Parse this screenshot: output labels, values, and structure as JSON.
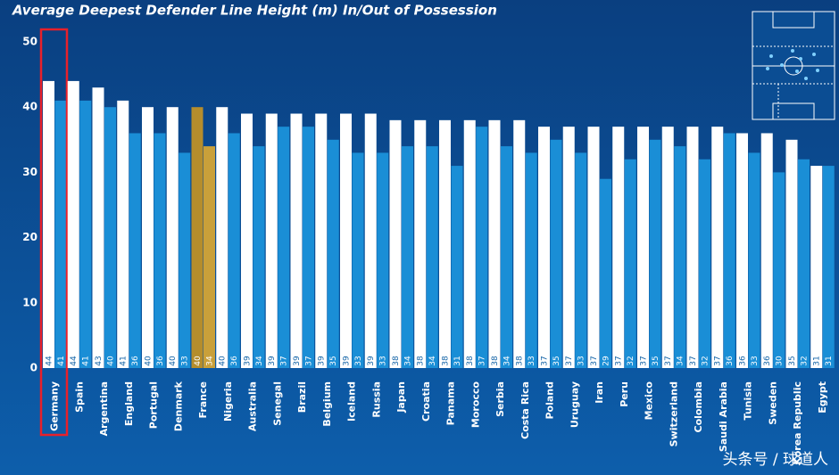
{
  "chart_data": {
    "type": "bar",
    "title": "Average Deepest Defender Line Height (m) In/Out of Possession",
    "categories": [
      "Germany",
      "Spain",
      "Argentina",
      "England",
      "Portugal",
      "Denmark",
      "France",
      "Nigeria",
      "Australia",
      "Senegal",
      "Brazil",
      "Belgium",
      "Iceland",
      "Russia",
      "Japan",
      "Croatia",
      "Panama",
      "Morocco",
      "Serbia",
      "Costa Rica",
      "Poland",
      "Uruguay",
      "Iran",
      "Peru",
      "Mexico",
      "Switzerland",
      "Colombia",
      "Saudi Arabia",
      "Tunisia",
      "Sweden",
      "Korea Republic",
      "Egypt"
    ],
    "series": [
      {
        "color": "#ffffff",
        "label_color": "#1565a8",
        "values": [
          44,
          44,
          43,
          41,
          40,
          40,
          40,
          40,
          39,
          39,
          39,
          39,
          39,
          39,
          38,
          38,
          38,
          38,
          38,
          38,
          37,
          37,
          37,
          37,
          37,
          37,
          37,
          37,
          36,
          36,
          35,
          31
        ]
      },
      {
        "color": "#1a8ed6",
        "label_color": "#ffffff",
        "values": [
          41,
          41,
          40,
          36,
          36,
          33,
          34,
          36,
          34,
          37,
          37,
          35,
          33,
          33,
          34,
          34,
          31,
          37,
          34,
          33,
          35,
          33,
          29,
          32,
          35,
          34,
          32,
          36,
          33,
          30,
          32,
          31
        ]
      }
    ],
    "highlight": {
      "category": "France",
      "colors": [
        "#b58d2c",
        "#c9a03a"
      ],
      "label_color": "#e0b040"
    },
    "outlined": {
      "category": "Germany",
      "color": "#e8202a"
    },
    "ylim": [
      0,
      50
    ],
    "yticks": [
      0,
      10,
      20,
      30,
      40,
      50
    ],
    "grid": false,
    "watermark": "头条号 / 球道人"
  }
}
